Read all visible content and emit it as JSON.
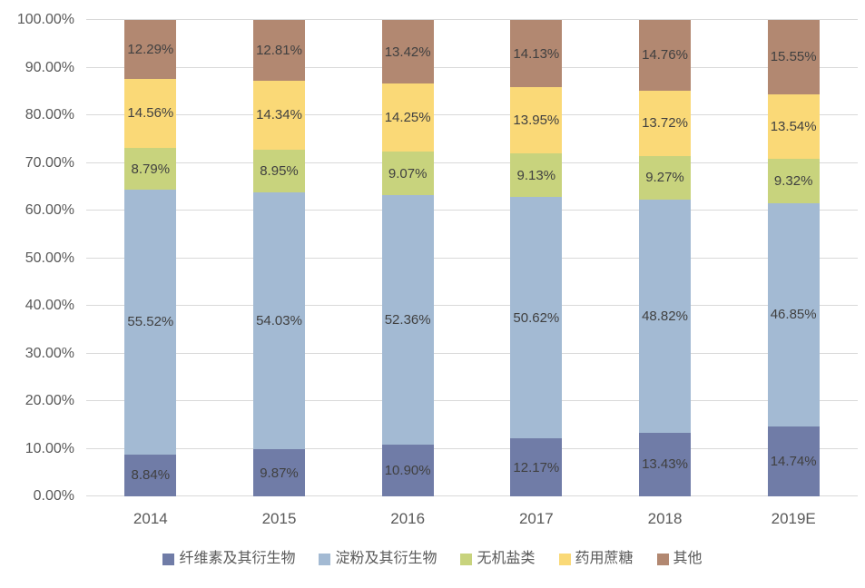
{
  "chart_data": {
    "type": "bar",
    "stacked": true,
    "percent_stacked": true,
    "title": "",
    "xlabel": "",
    "ylabel": "",
    "grid": true,
    "legend_position": "bottom",
    "categories": [
      "2014",
      "2015",
      "2016",
      "2017",
      "2018",
      "2019E"
    ],
    "series": [
      {
        "name": "纤维素及其衍生物",
        "color": "#707CA7",
        "values": [
          8.84,
          9.87,
          10.9,
          12.17,
          13.43,
          14.74
        ]
      },
      {
        "name": "淀粉及其衍生物",
        "color": "#A3BAD3",
        "values": [
          55.52,
          54.03,
          52.36,
          50.62,
          48.82,
          46.85
        ]
      },
      {
        "name": "无机盐类",
        "color": "#C8D37D",
        "values": [
          8.79,
          8.95,
          9.07,
          9.13,
          9.27,
          9.32
        ]
      },
      {
        "name": "药用蔗糖",
        "color": "#FAD977",
        "values": [
          14.56,
          14.34,
          14.25,
          13.95,
          13.72,
          13.54
        ]
      },
      {
        "name": "其他",
        "color": "#B28871",
        "values": [
          12.29,
          12.81,
          13.42,
          14.13,
          14.76,
          15.55
        ]
      }
    ],
    "y_axis": {
      "min": 0,
      "max": 100,
      "step": 10,
      "tick_labels": [
        "0.00%",
        "10.00%",
        "20.00%",
        "30.00%",
        "40.00%",
        "50.00%",
        "60.00%",
        "70.00%",
        "80.00%",
        "90.00%",
        "100.00%"
      ]
    },
    "data_label_suffix": "%"
  },
  "colors": {
    "background": "#ffffff",
    "gridline": "#d9d9d9",
    "axis_text": "#595959",
    "data_label_text": "#404040"
  }
}
